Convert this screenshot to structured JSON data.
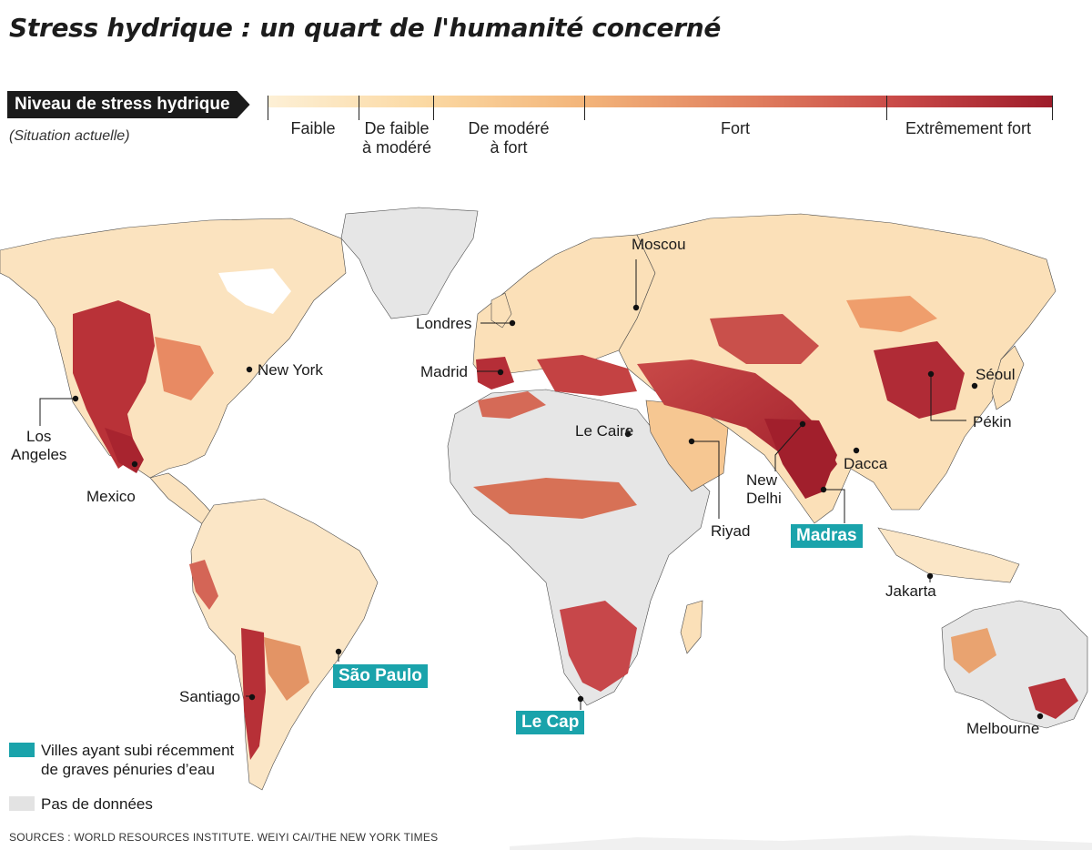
{
  "title": "Stress hydrique : un quart de l'humanité concerné",
  "legend": {
    "heading": "Niveau de stress hydrique",
    "subheading": "(Situation actuelle)",
    "levels": [
      "Faible",
      "De faible\nà modéré",
      "De modéré\nà fort",
      "Fort",
      "Extrêmement fort"
    ],
    "colors": [
      "#fdf0d6",
      "#fbd9a3",
      "#f3b57a",
      "#e07e5e",
      "#9e1c2a"
    ],
    "shortage_label": "Villes ayant subi récemment\nde graves pénuries d’eau",
    "shortage_color": "#1aa3ab",
    "no_data_label": "Pas de données",
    "no_data_color": "#e3e3e3"
  },
  "cities": {
    "moscou": "Moscou",
    "londres": "Londres",
    "madrid": "Madrid",
    "new_york": "New York",
    "los_angeles": "Los\nAngeles",
    "mexico": "Mexico",
    "le_caire": "Le Caire",
    "riyad": "Riyad",
    "new_delhi": "New\nDelhi",
    "madras": "Madras",
    "dacca": "Dacca",
    "pekin": "Pékin",
    "seoul": "Séoul",
    "jakarta": "Jakarta",
    "melbourne": "Melbourne",
    "sao_paulo": "São Paulo",
    "santiago": "Santiago",
    "le_cap": "Le Cap"
  },
  "source": "SOURCES : WORLD RESOURCES INSTITUTE. WEIYI CAI/THE NEW YORK TIMES"
}
